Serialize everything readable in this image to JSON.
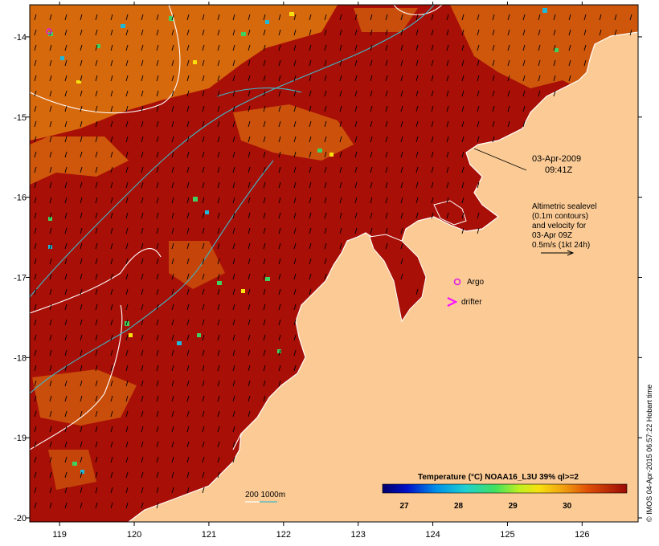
{
  "map": {
    "date_label": "03-Apr-2009",
    "time_label": "09:41Z",
    "legend_lines": [
      "Altimetric sealevel",
      "(0.1m contours)",
      "and velocity for",
      "03-Apr 09Z",
      "0.5m/s (1kt 24h)"
    ],
    "argo_label": "Argo",
    "drifter_label": "drifter",
    "depth_label": "200  1000m",
    "colorbar_title": "Temperature (°C) NOAA16_L3U 39% ql>=2",
    "colorbar_ticks": [
      "27",
      "28",
      "29",
      "30"
    ],
    "credit": "© IMOS 04-Apr-2015 06:57:22 Hobart time",
    "x_ticks": [
      "119",
      "120",
      "121",
      "122",
      "123",
      "124",
      "125",
      "126"
    ],
    "y_ticks": [
      "-14",
      "-15",
      "-16",
      "-17",
      "-18",
      "-19",
      "-20"
    ],
    "colors": {
      "sea_warm": "#a80f06",
      "sea_orange": "#e07a10",
      "land": "#fccb95",
      "contour_white": "#ffffff",
      "contour_cyan": "#40b8c8",
      "argo": "#e020e0",
      "drifter": "#ff10ff"
    }
  }
}
